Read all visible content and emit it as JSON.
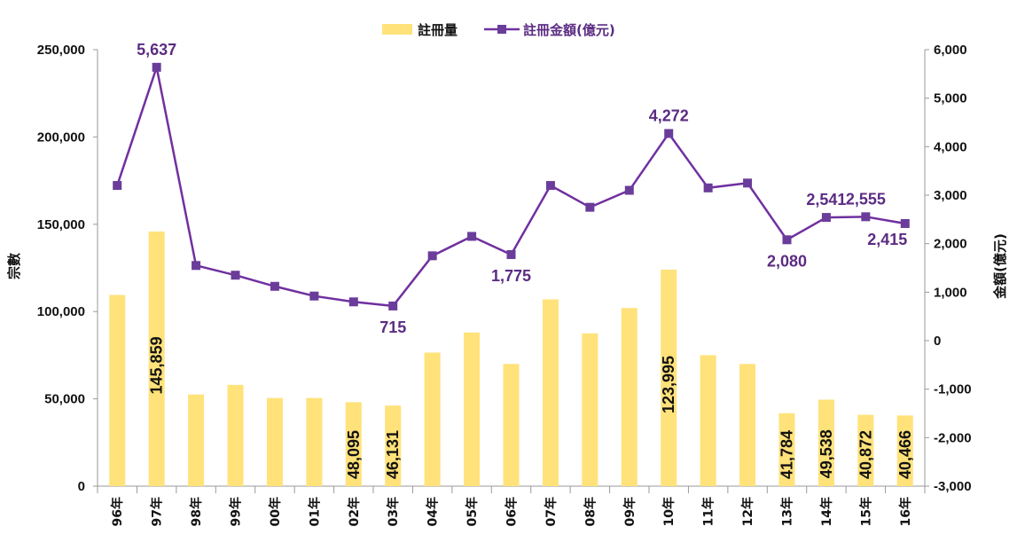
{
  "chart_data": {
    "type": "bar+line",
    "categories": [
      "96年",
      "97年",
      "98年",
      "99年",
      "00年",
      "01年",
      "02年",
      "03年",
      "04年",
      "05年",
      "06年",
      "07年",
      "08年",
      "09年",
      "10年",
      "11年",
      "12年",
      "13年",
      "14年",
      "15年",
      "16年"
    ],
    "series": [
      {
        "name": "註冊量",
        "type": "bar",
        "axis": "left",
        "color": "#FFE27A",
        "values": [
          109500,
          145859,
          52500,
          58000,
          50500,
          50500,
          48095,
          46131,
          76500,
          88000,
          70000,
          107000,
          87500,
          102000,
          123995,
          75000,
          70000,
          41784,
          49538,
          40872,
          40466
        ],
        "labels": [
          "",
          "145,859",
          "",
          "",
          "",
          "",
          "48,095",
          "46,131",
          "",
          "",
          "",
          "",
          "",
          "",
          "123,995",
          "",
          "",
          "41,784",
          "49,538",
          "40,872",
          "40,466"
        ]
      },
      {
        "name": "註冊金額(億元)",
        "type": "line",
        "axis": "right",
        "color": "#7030A0",
        "marker_color": "#6A3D9A",
        "label_color": "#5B2C83",
        "values": [
          3200,
          5637,
          1550,
          1350,
          1120,
          920,
          800,
          715,
          1750,
          2150,
          1775,
          3200,
          2750,
          3100,
          4272,
          3150,
          3250,
          2080,
          2541,
          2555,
          2415
        ],
        "labels": [
          "",
          "5,637",
          "",
          "",
          "",
          "",
          "",
          "715",
          "",
          "",
          "1,775",
          "",
          "",
          "",
          "4,272",
          "",
          "",
          "2,080",
          "2,541",
          "2,555",
          "2,415"
        ]
      }
    ],
    "y_left": {
      "label": "宗數",
      "range": [
        0,
        250000
      ],
      "ticks": [
        "0",
        "50,000",
        "100,000",
        "150,000",
        "200,000",
        "250,000"
      ]
    },
    "y_right": {
      "label": "金額(億元)",
      "range": [
        -3000,
        6000
      ],
      "ticks": [
        "-3,000",
        "-2,000",
        "-1,000",
        "0",
        "1,000",
        "2,000",
        "3,000",
        "4,000",
        "5,000",
        "6,000"
      ]
    },
    "legend": {
      "position": "top-center",
      "items": [
        "註冊量",
        "註冊金額(億元)"
      ]
    },
    "grid": false
  }
}
